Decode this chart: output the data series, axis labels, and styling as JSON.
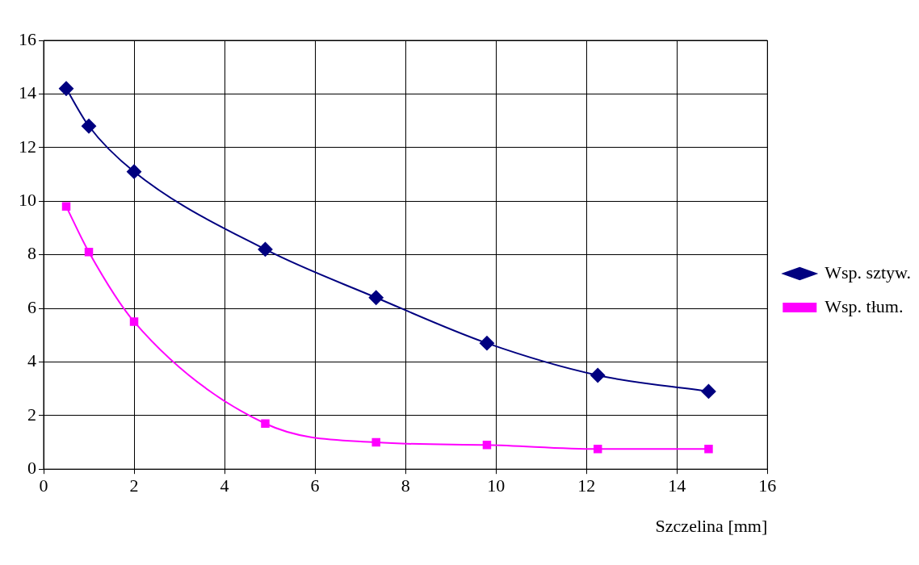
{
  "chart_data": {
    "type": "line",
    "xlabel": "Szczelina [mm]",
    "xlim": [
      0,
      16
    ],
    "xticks": [
      0,
      2,
      4,
      6,
      8,
      10,
      12,
      14,
      16
    ],
    "ylim": [
      0,
      16
    ],
    "yticks": [
      0,
      2,
      4,
      6,
      8,
      10,
      12,
      14,
      16
    ],
    "grid": true,
    "legend": "right",
    "line_style": "solid",
    "series": [
      {
        "name": "Wsp. sztyw.",
        "color": "#000080",
        "marker": "diamond",
        "x": [
          0.5,
          1.0,
          2.0,
          4.9,
          7.35,
          9.8,
          12.25,
          14.7
        ],
        "values": [
          14.2,
          12.8,
          11.1,
          8.2,
          6.4,
          4.7,
          3.5,
          2.9
        ]
      },
      {
        "name": "Wsp. tłum.",
        "color": "#ff00ff",
        "marker": "square",
        "x": [
          0.5,
          1.0,
          2.0,
          4.9,
          7.35,
          9.8,
          12.25,
          14.7
        ],
        "values": [
          9.8,
          8.1,
          5.5,
          1.7,
          1.0,
          0.9,
          0.75,
          0.75
        ]
      }
    ]
  }
}
